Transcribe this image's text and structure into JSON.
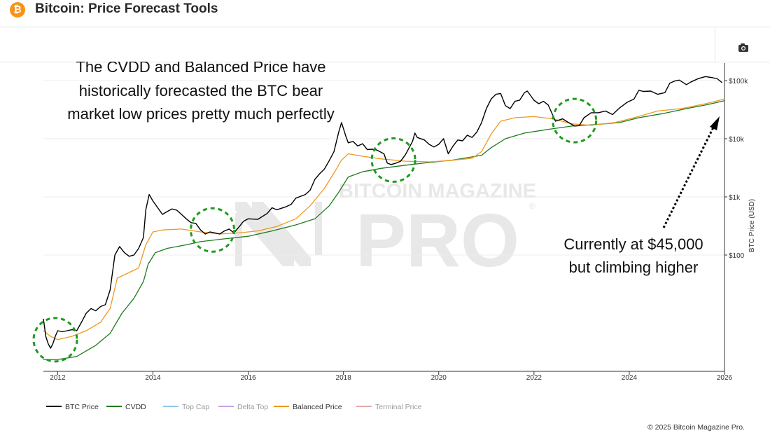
{
  "header": {
    "title": "Bitcoin: Price Forecast Tools",
    "logo_glyph": "₿",
    "logo_color": "#f7931a"
  },
  "toolbar": {
    "camera_icon": "camera-icon"
  },
  "annotations": {
    "top_note": [
      "The CVDD and Balanced Price have",
      "historically forecasted the BTC bear",
      "market low prices pretty much perfectly"
    ],
    "current_note": [
      "Currently at $45,000",
      "but climbing higher"
    ]
  },
  "watermark": {
    "line1": "BITCOIN MAGAZINE",
    "line2": "PRO",
    "mark": "®"
  },
  "chart_data": {
    "type": "line",
    "xlabel": "",
    "ylabel": "BTC Price (USD)",
    "yscale": "log",
    "xlim": [
      2011.7,
      2026.0
    ],
    "ylim": [
      1,
      200000
    ],
    "x_ticks": [
      "2012",
      "2014",
      "2016",
      "2018",
      "2020",
      "2022",
      "2024",
      "2026"
    ],
    "y_ticks": [
      {
        "value": 100,
        "label": "$100"
      },
      {
        "value": 1000,
        "label": "$1k"
      },
      {
        "value": 10000,
        "label": "$10k"
      },
      {
        "value": 100000,
        "label": "$100k"
      }
    ],
    "grid": "horizontal",
    "legend_position": "bottom-left",
    "series": [
      {
        "name": "BTC Price",
        "color": "#000000",
        "points": [
          [
            2011.7,
            8
          ],
          [
            2011.75,
            4
          ],
          [
            2011.8,
            3
          ],
          [
            2011.85,
            2.5
          ],
          [
            2011.9,
            3
          ],
          [
            2011.95,
            4
          ],
          [
            2012.0,
            5
          ],
          [
            2012.1,
            4.8
          ],
          [
            2012.2,
            5
          ],
          [
            2012.3,
            5.2
          ],
          [
            2012.4,
            5
          ],
          [
            2012.5,
            7
          ],
          [
            2012.6,
            10
          ],
          [
            2012.7,
            12
          ],
          [
            2012.8,
            11
          ],
          [
            2012.9,
            13
          ],
          [
            2013.0,
            14
          ],
          [
            2013.1,
            25
          ],
          [
            2013.2,
            100
          ],
          [
            2013.3,
            140
          ],
          [
            2013.4,
            110
          ],
          [
            2013.5,
            95
          ],
          [
            2013.6,
            100
          ],
          [
            2013.7,
            130
          ],
          [
            2013.8,
            200
          ],
          [
            2013.85,
            600
          ],
          [
            2013.92,
            1100
          ],
          [
            2014.0,
            850
          ],
          [
            2014.1,
            650
          ],
          [
            2014.2,
            500
          ],
          [
            2014.3,
            560
          ],
          [
            2014.4,
            620
          ],
          [
            2014.5,
            590
          ],
          [
            2014.6,
            500
          ],
          [
            2014.7,
            420
          ],
          [
            2014.8,
            360
          ],
          [
            2014.9,
            350
          ],
          [
            2015.0,
            270
          ],
          [
            2015.1,
            230
          ],
          [
            2015.2,
            250
          ],
          [
            2015.3,
            240
          ],
          [
            2015.4,
            230
          ],
          [
            2015.5,
            260
          ],
          [
            2015.6,
            280
          ],
          [
            2015.7,
            240
          ],
          [
            2015.8,
            300
          ],
          [
            2015.9,
            380
          ],
          [
            2016.0,
            420
          ],
          [
            2016.2,
            410
          ],
          [
            2016.4,
            520
          ],
          [
            2016.5,
            650
          ],
          [
            2016.6,
            600
          ],
          [
            2016.8,
            680
          ],
          [
            2016.9,
            740
          ],
          [
            2017.0,
            950
          ],
          [
            2017.2,
            1100
          ],
          [
            2017.3,
            1300
          ],
          [
            2017.4,
            2000
          ],
          [
            2017.5,
            2500
          ],
          [
            2017.6,
            3000
          ],
          [
            2017.7,
            4200
          ],
          [
            2017.8,
            6000
          ],
          [
            2017.9,
            13000
          ],
          [
            2017.96,
            19000
          ],
          [
            2018.05,
            11000
          ],
          [
            2018.1,
            8500
          ],
          [
            2018.2,
            9000
          ],
          [
            2018.3,
            7500
          ],
          [
            2018.4,
            8200
          ],
          [
            2018.5,
            6500
          ],
          [
            2018.6,
            6600
          ],
          [
            2018.7,
            6400
          ],
          [
            2018.85,
            5500
          ],
          [
            2018.92,
            3800
          ],
          [
            2019.0,
            3600
          ],
          [
            2019.1,
            3800
          ],
          [
            2019.2,
            4100
          ],
          [
            2019.3,
            5300
          ],
          [
            2019.45,
            9000
          ],
          [
            2019.5,
            12500
          ],
          [
            2019.55,
            10500
          ],
          [
            2019.7,
            9500
          ],
          [
            2019.8,
            8000
          ],
          [
            2019.9,
            7200
          ],
          [
            2020.0,
            8000
          ],
          [
            2020.1,
            10000
          ],
          [
            2020.2,
            5500
          ],
          [
            2020.3,
            7500
          ],
          [
            2020.4,
            9500
          ],
          [
            2020.5,
            9200
          ],
          [
            2020.6,
            11500
          ],
          [
            2020.7,
            10500
          ],
          [
            2020.8,
            13000
          ],
          [
            2020.9,
            19000
          ],
          [
            2021.0,
            33000
          ],
          [
            2021.1,
            48000
          ],
          [
            2021.2,
            58000
          ],
          [
            2021.3,
            60000
          ],
          [
            2021.4,
            37000
          ],
          [
            2021.5,
            33000
          ],
          [
            2021.6,
            44000
          ],
          [
            2021.7,
            46000
          ],
          [
            2021.8,
            62000
          ],
          [
            2021.86,
            66000
          ],
          [
            2022.0,
            46000
          ],
          [
            2022.1,
            40000
          ],
          [
            2022.2,
            44000
          ],
          [
            2022.3,
            38000
          ],
          [
            2022.45,
            20000
          ],
          [
            2022.6,
            22000
          ],
          [
            2022.7,
            19500
          ],
          [
            2022.85,
            16500
          ],
          [
            2022.95,
            16800
          ],
          [
            2023.05,
            23000
          ],
          [
            2023.2,
            28000
          ],
          [
            2023.35,
            28000
          ],
          [
            2023.5,
            30000
          ],
          [
            2023.65,
            26000
          ],
          [
            2023.8,
            34000
          ],
          [
            2023.95,
            42000
          ],
          [
            2024.1,
            48000
          ],
          [
            2024.2,
            68000
          ],
          [
            2024.3,
            65000
          ],
          [
            2024.45,
            66000
          ],
          [
            2024.6,
            58000
          ],
          [
            2024.75,
            62000
          ],
          [
            2024.85,
            90000
          ],
          [
            2024.95,
            98000
          ],
          [
            2025.05,
            102000
          ],
          [
            2025.2,
            85000
          ],
          [
            2025.3,
            95000
          ],
          [
            2025.45,
            108000
          ],
          [
            2025.6,
            117000
          ],
          [
            2025.75,
            112000
          ],
          [
            2025.85,
            107000
          ],
          [
            2025.95,
            92000
          ]
        ]
      },
      {
        "name": "CVDD",
        "color": "#1e7b1e",
        "points": [
          [
            2011.7,
            1.6
          ],
          [
            2012.0,
            1.6
          ],
          [
            2012.4,
            1.8
          ],
          [
            2012.8,
            2.8
          ],
          [
            2013.1,
            4.5
          ],
          [
            2013.35,
            10
          ],
          [
            2013.6,
            18
          ],
          [
            2013.8,
            35
          ],
          [
            2013.9,
            70
          ],
          [
            2014.05,
            110
          ],
          [
            2014.3,
            130
          ],
          [
            2014.7,
            150
          ],
          [
            2015.0,
            170
          ],
          [
            2015.5,
            190
          ],
          [
            2016.0,
            210
          ],
          [
            2016.5,
            260
          ],
          [
            2017.0,
            330
          ],
          [
            2017.4,
            420
          ],
          [
            2017.7,
            700
          ],
          [
            2017.9,
            1200
          ],
          [
            2018.1,
            2200
          ],
          [
            2018.4,
            2700
          ],
          [
            2018.8,
            3100
          ],
          [
            2019.3,
            3500
          ],
          [
            2019.8,
            3900
          ],
          [
            2020.3,
            4300
          ],
          [
            2020.9,
            5200
          ],
          [
            2021.1,
            7000
          ],
          [
            2021.4,
            10000
          ],
          [
            2021.8,
            12500
          ],
          [
            2022.3,
            14500
          ],
          [
            2022.8,
            16500
          ],
          [
            2023.3,
            17500
          ],
          [
            2023.8,
            19000
          ],
          [
            2024.2,
            23000
          ],
          [
            2024.7,
            27000
          ],
          [
            2025.2,
            33000
          ],
          [
            2025.6,
            38000
          ],
          [
            2026.0,
            45000
          ]
        ]
      },
      {
        "name": "Balanced Price",
        "color": "#f0981e",
        "points": [
          [
            2011.7,
            5
          ],
          [
            2011.85,
            4
          ],
          [
            2012.0,
            3.5
          ],
          [
            2012.3,
            4
          ],
          [
            2012.6,
            5
          ],
          [
            2012.9,
            7
          ],
          [
            2013.1,
            12
          ],
          [
            2013.25,
            40
          ],
          [
            2013.5,
            50
          ],
          [
            2013.7,
            60
          ],
          [
            2013.85,
            150
          ],
          [
            2014.0,
            250
          ],
          [
            2014.2,
            270
          ],
          [
            2014.6,
            280
          ],
          [
            2015.0,
            250
          ],
          [
            2015.4,
            230
          ],
          [
            2015.8,
            240
          ],
          [
            2016.2,
            260
          ],
          [
            2016.6,
            310
          ],
          [
            2017.0,
            420
          ],
          [
            2017.3,
            700
          ],
          [
            2017.6,
            1400
          ],
          [
            2017.85,
            3000
          ],
          [
            2017.95,
            4200
          ],
          [
            2018.1,
            5500
          ],
          [
            2018.4,
            5000
          ],
          [
            2018.8,
            4500
          ],
          [
            2019.3,
            4100
          ],
          [
            2019.8,
            4000
          ],
          [
            2020.2,
            4200
          ],
          [
            2020.7,
            4600
          ],
          [
            2020.9,
            6000
          ],
          [
            2021.1,
            12000
          ],
          [
            2021.3,
            20000
          ],
          [
            2021.6,
            23000
          ],
          [
            2022.0,
            24000
          ],
          [
            2022.4,
            22000
          ],
          [
            2022.8,
            18000
          ],
          [
            2023.2,
            17000
          ],
          [
            2023.7,
            19000
          ],
          [
            2024.1,
            23000
          ],
          [
            2024.6,
            30000
          ],
          [
            2025.1,
            33000
          ],
          [
            2025.6,
            40000
          ],
          [
            2026.0,
            48000
          ]
        ]
      }
    ],
    "legend": [
      {
        "name": "BTC Price",
        "color": "#000000"
      },
      {
        "name": "CVDD",
        "color": "#1e7b1e"
      },
      {
        "name": "Top Cap",
        "color": "#8ecbe6",
        "faded": true
      },
      {
        "name": "Delta Top",
        "color": "#c9a3e6",
        "faded": true
      },
      {
        "name": "Balanced Price",
        "color": "#f0981e"
      },
      {
        "name": "Terminal Price",
        "color": "#e8a8a8",
        "faded": true
      }
    ],
    "highlights": [
      {
        "x": 2011.95,
        "y": 3.5,
        "label": "bear-market-low-2012"
      },
      {
        "x": 2015.25,
        "y": 270,
        "label": "bear-market-low-2015"
      },
      {
        "x": 2019.05,
        "y": 4300,
        "label": "bear-market-low-2019"
      },
      {
        "x": 2022.85,
        "y": 20500,
        "label": "bear-market-low-2022"
      }
    ]
  },
  "footer": {
    "copyright": "© 2025 Bitcoin Magazine Pro."
  }
}
